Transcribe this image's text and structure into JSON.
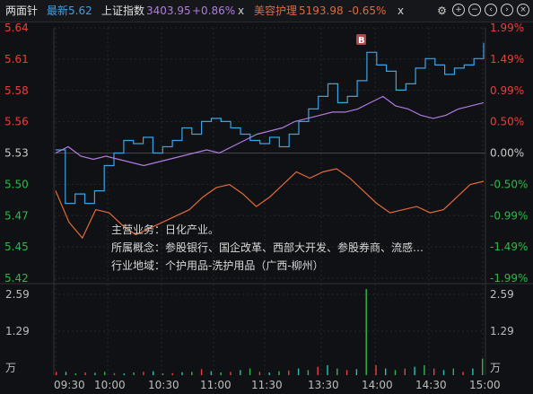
{
  "header": {
    "title": "两面针",
    "latest_label": "最新5.62",
    "index_name": "上证指数",
    "index_value": "3403.95",
    "index_change": "+0.86%",
    "index_close": "x",
    "sector_name": "美容护理",
    "sector_value": "5193.98",
    "sector_change": "-0.65%",
    "sector_close": "x",
    "icons": [
      "settings-icon",
      "add-icon",
      "minus-icon",
      "left-icon",
      "right-icon",
      "close-icon"
    ]
  },
  "colors": {
    "bg": "#101114",
    "stock_line": "#3aa3e8",
    "index_line": "#b07be0",
    "sector_line": "#e06a3a",
    "up": "#e8403a",
    "down": "#2fb84a",
    "flat": "#c9c9c9",
    "vol_down": "#2bc0b0"
  },
  "marker": "B",
  "info": {
    "line1": "主营业务：日化产业。",
    "line2": "所属概念：参股银行、国企改革、西部大开发、参股券商、流感…",
    "line3": "行业地域：个护用品-洗护用品（广西-柳州）"
  },
  "price_axis": [
    "5.64",
    "5.61",
    "5.58",
    "5.56",
    "5.53",
    "5.50",
    "5.47",
    "5.45",
    "5.42"
  ],
  "pct_axis": [
    "1.99%",
    "1.49%",
    "0.99%",
    "0.50%",
    "0.00%",
    "-0.50%",
    "-0.99%",
    "-1.49%",
    "-1.99%"
  ],
  "volume_axis": {
    "left": [
      "2.59",
      "1.29",
      "万"
    ],
    "right": [
      "2.59",
      "1.29",
      "万"
    ]
  },
  "time_axis": [
    "09:30",
    "10:00",
    "10:30",
    "11:00",
    "11:30",
    "13:30",
    "14:00",
    "14:30",
    "15:00"
  ],
  "chart_data": {
    "type": "line",
    "prev_close": 5.53,
    "ylim_price": [
      5.42,
      5.64
    ],
    "ylim_pct": [
      -1.99,
      1.99
    ],
    "series": [
      {
        "values_pct": [
          0.05,
          -0.8,
          -0.65,
          -0.8,
          -0.6,
          -0.2,
          0.0,
          0.2,
          0.15,
          0.25,
          0.0,
          0.1,
          0.2,
          0.4,
          0.3,
          0.5,
          0.55,
          0.5,
          0.4,
          0.3,
          0.2,
          0.15,
          0.25,
          0.1,
          0.3,
          0.5,
          0.7,
          0.9,
          1.1,
          0.8,
          0.9,
          1.15,
          1.6,
          1.4,
          1.3,
          1.0,
          1.1,
          1.35,
          1.5,
          1.4,
          1.25,
          1.35,
          1.4,
          1.5,
          1.75
        ]
      },
      {
        "values_pct": [
          0.0,
          0.1,
          -0.05,
          -0.1,
          -0.05,
          -0.1,
          -0.15,
          -0.2,
          -0.15,
          -0.1,
          -0.05,
          0.0,
          0.05,
          0.0,
          0.1,
          0.2,
          0.3,
          0.35,
          0.4,
          0.5,
          0.55,
          0.6,
          0.65,
          0.65,
          0.7,
          0.8,
          0.9,
          0.75,
          0.7,
          0.6,
          0.55,
          0.6,
          0.7,
          0.75,
          0.8
        ]
      },
      {
        "values_pct": [
          -0.6,
          -1.1,
          -1.35,
          -0.9,
          -0.95,
          -1.15,
          -1.3,
          -1.2,
          -1.1,
          -1.0,
          -0.9,
          -0.7,
          -0.55,
          -0.5,
          -0.65,
          -0.85,
          -0.7,
          -0.5,
          -0.3,
          -0.4,
          -0.3,
          -0.25,
          -0.4,
          -0.6,
          -0.8,
          -0.95,
          -0.9,
          -0.85,
          -0.95,
          -0.9,
          -0.7,
          -0.5,
          -0.45
        ]
      }
    ],
    "volume": {
      "ylim": [
        0,
        2.59
      ],
      "values": [
        0.1,
        0.1,
        0.05,
        0.08,
        0.07,
        0.1,
        0.06,
        0.05,
        0.08,
        0.1,
        0.12,
        0.05,
        0.06,
        0.09,
        0.1,
        0.18,
        0.12,
        0.08,
        0.1,
        0.15,
        0.2,
        0.1,
        0.08,
        0.12,
        0.14,
        0.2,
        0.15,
        0.25,
        0.3,
        0.2,
        0.15,
        0.18,
        2.59,
        0.3,
        0.2,
        0.15,
        0.2,
        0.25,
        0.3,
        0.2,
        0.15,
        0.2,
        0.1,
        0.2,
        0.5
      ]
    }
  }
}
